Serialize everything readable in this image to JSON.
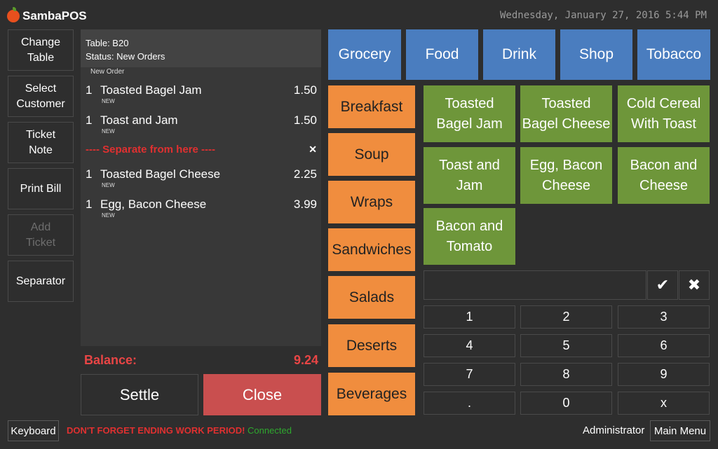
{
  "app": {
    "name": "SambaPOS",
    "datetime": "Wednesday, January 27, 2016 5:44 PM"
  },
  "sidebar": {
    "change_table": "Change\nTable",
    "select_customer": "Select\nCustomer",
    "ticket_note": "Ticket\nNote",
    "print_bill": "Print Bill",
    "add_ticket": "Add\nTicket",
    "separator": "Separator"
  },
  "ticket": {
    "table": "Table: B20",
    "status": "Status: New Orders",
    "new_order_label": "New Order",
    "lines": [
      {
        "qty": "1",
        "name": "Toasted Bagel Jam",
        "price": "1.50",
        "tag": "NEW"
      },
      {
        "qty": "1",
        "name": "Toast and Jam",
        "price": "1.50",
        "tag": "NEW"
      },
      {
        "qty": "1",
        "name": "Toasted Bagel Cheese",
        "price": "2.25",
        "tag": "NEW"
      },
      {
        "qty": "1",
        "name": "Egg, Bacon Cheese",
        "price": "3.99",
        "tag": "NEW"
      }
    ],
    "separator_text": "---- Separate from here ----",
    "separator_remove": "✕",
    "balance_label": "Balance:",
    "balance_value": "9.24"
  },
  "actions": {
    "settle": "Settle",
    "close": "Close"
  },
  "categories": [
    "Grocery",
    "Food",
    "Drink",
    "Shop",
    "Tobacco"
  ],
  "subcategories": [
    "Breakfast",
    "Soup",
    "Wraps",
    "Sandwiches",
    "Salads",
    "Deserts",
    "Beverages"
  ],
  "menu_items": [
    "Toasted\nBagel Jam",
    "Toasted\nBagel Cheese",
    "Cold Cereal\nWith Toast",
    "Toast and\nJam",
    "Egg, Bacon\nCheese",
    "Bacon and\nCheese",
    "Bacon and\nTomato"
  ],
  "numpad": {
    "ok_icon": "✔",
    "cancel_icon": "✖",
    "keys": [
      "1",
      "2",
      "3",
      "4",
      "5",
      "6",
      "7",
      "8",
      "9",
      ".",
      "0",
      "x"
    ]
  },
  "footer": {
    "keyboard": "Keyboard",
    "warning": "DON'T FORGET ENDING WORK PERIOD!",
    "connection": "Connected",
    "user": "Administrator",
    "main_menu": "Main Menu"
  },
  "colors": {
    "background": "#2e2e2e",
    "category_blue": "#4a7dbf",
    "subcategory_orange": "#f08d3e",
    "item_green": "#6e963a",
    "close_red": "#c94f4f",
    "alert_red": "#e03030",
    "connected_green": "#2ea82e"
  }
}
